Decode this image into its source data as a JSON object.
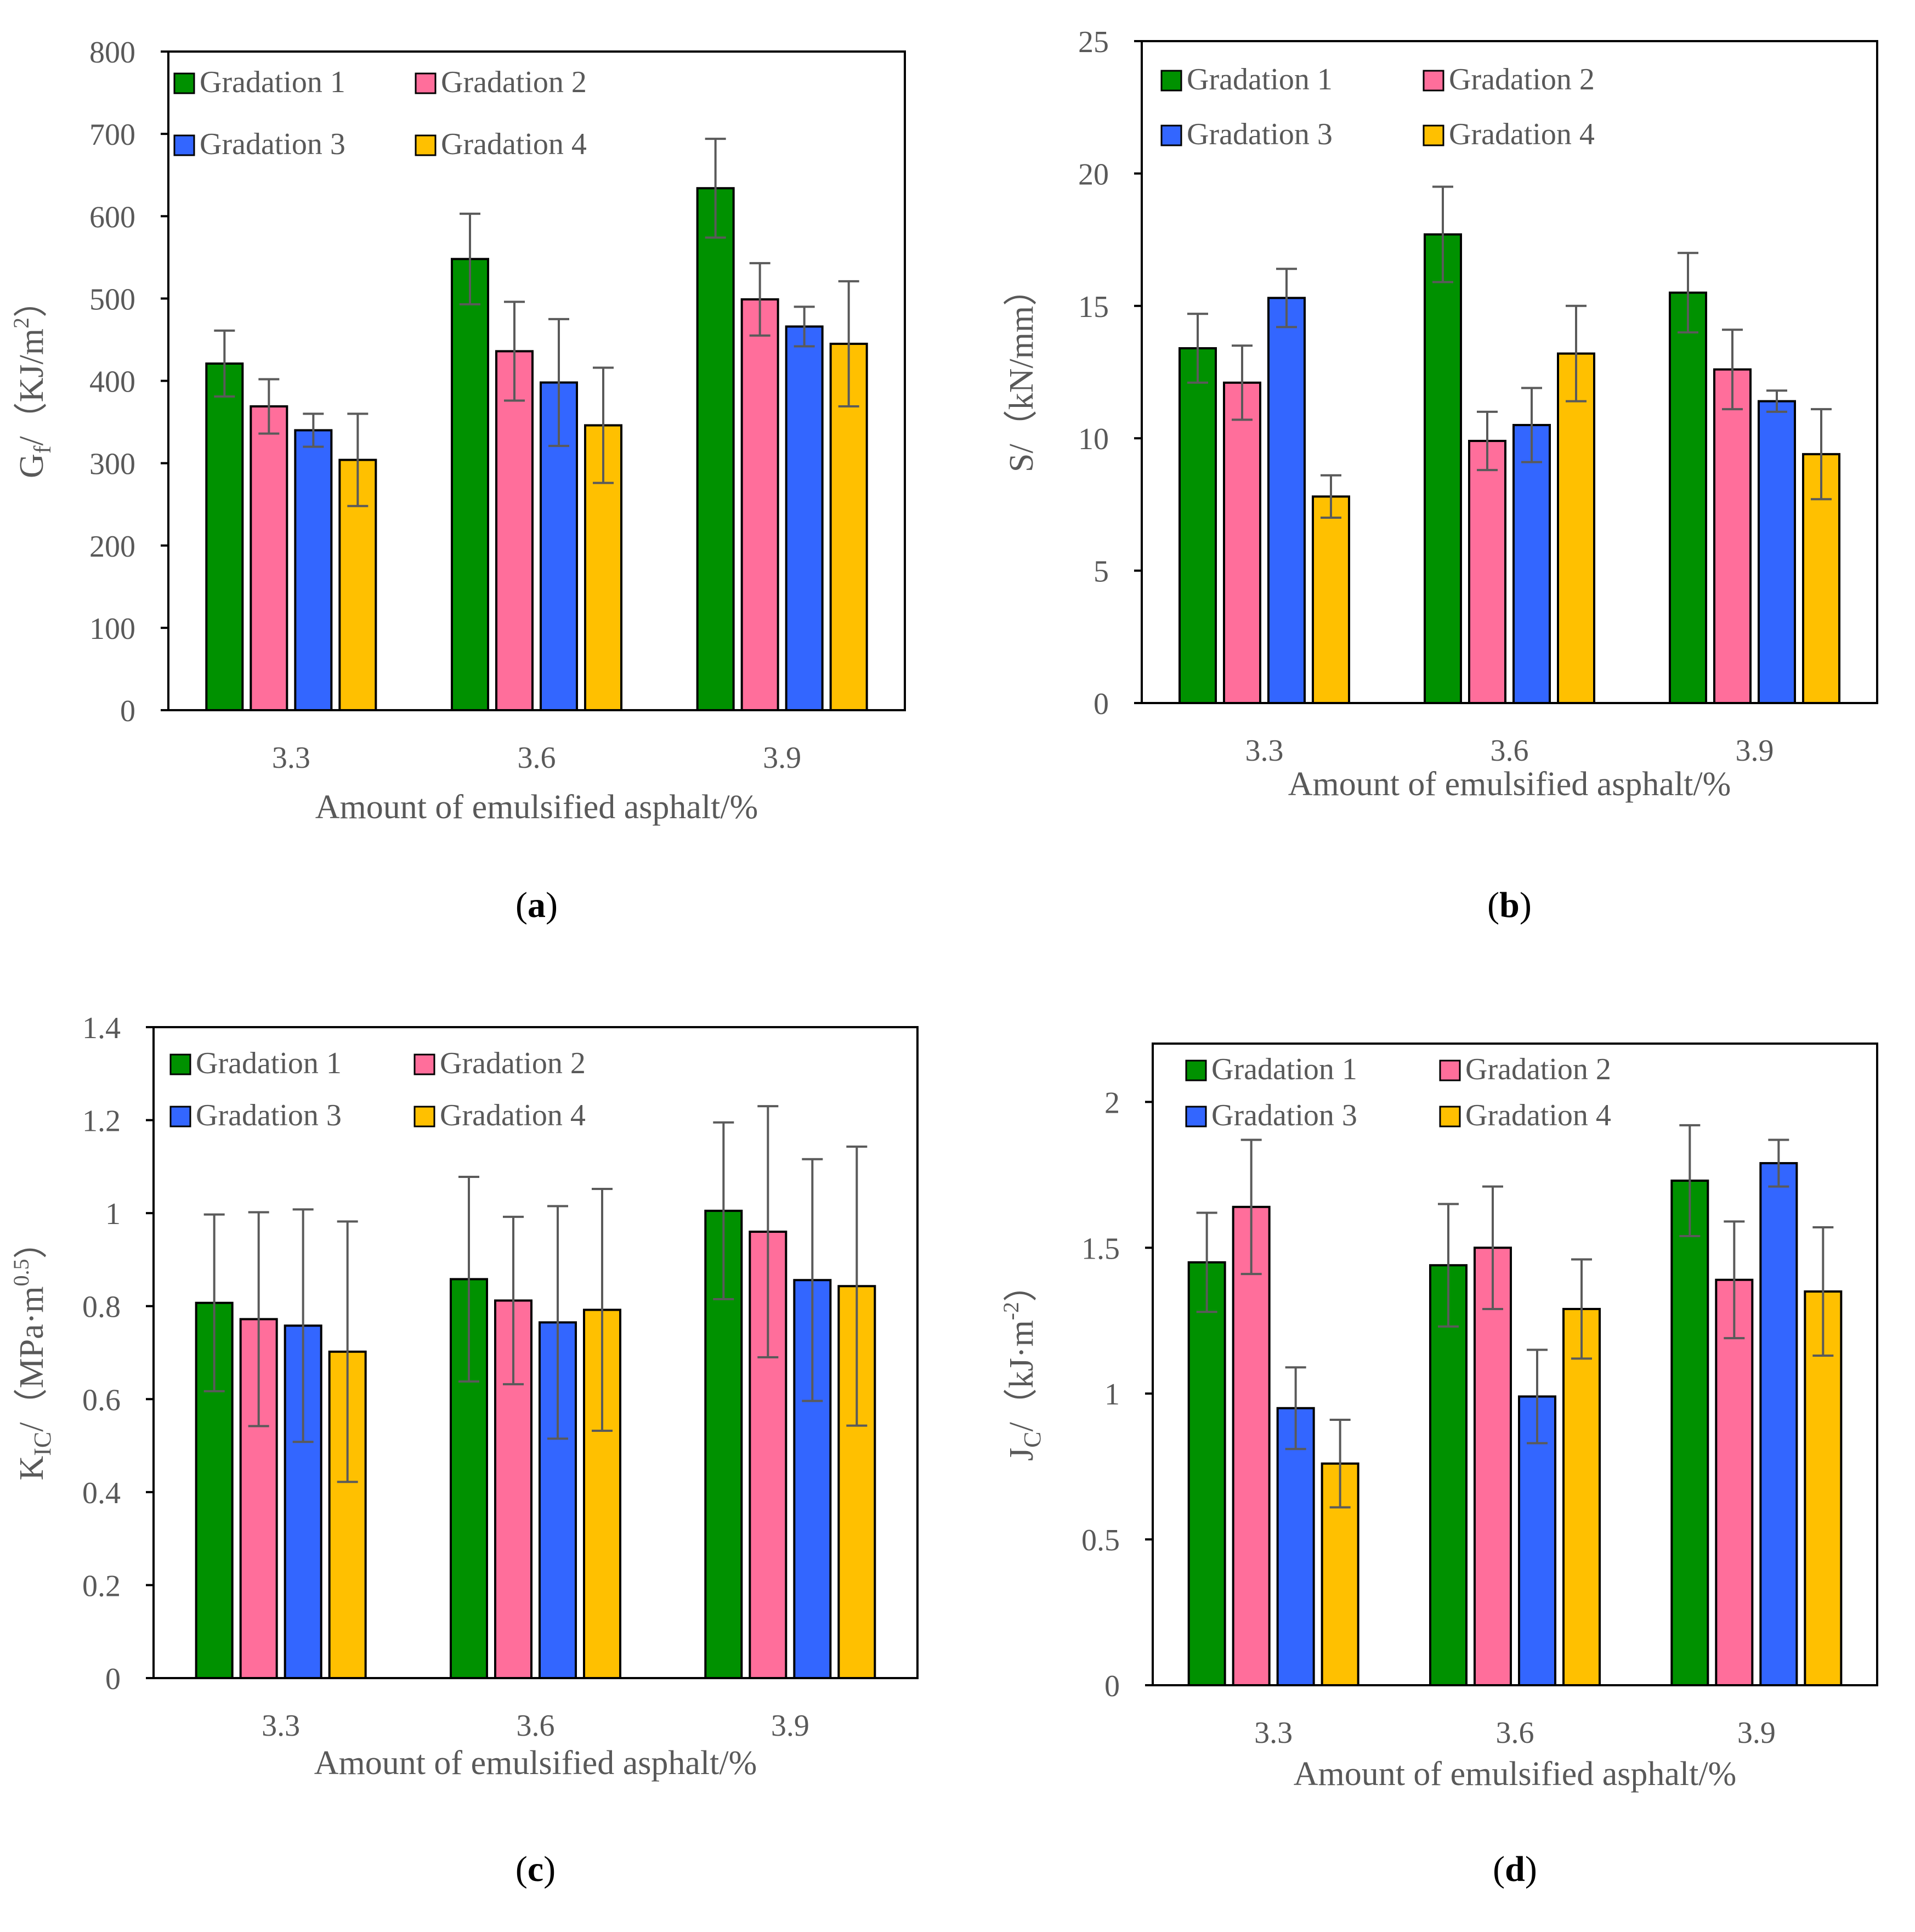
{
  "chart_data": [
    {
      "id": "a",
      "type": "bar",
      "panel_label": "a",
      "xlabel": "Amount of emulsified asphalt/%",
      "ylabel": {
        "main": "G",
        "sub": "f",
        "rest": "/（KJ/m",
        "sup": "2",
        "close": "）"
      },
      "categories": [
        "3.3",
        "3.6",
        "3.9"
      ],
      "ylim": [
        0,
        800
      ],
      "yticks": [
        0,
        100,
        200,
        300,
        400,
        500,
        600,
        700,
        800
      ],
      "ytick_labels": [
        "0",
        "100",
        "200",
        "300",
        "400",
        "500",
        "600",
        "700",
        "800"
      ],
      "legend": "top-left",
      "grid": false,
      "series": [
        {
          "name": "Gradation 1",
          "values": [
            421,
            548,
            634
          ],
          "errors": [
            40,
            55,
            60
          ]
        },
        {
          "name": "Gradation 2",
          "values": [
            369,
            436,
            499
          ],
          "errors": [
            33,
            60,
            44
          ]
        },
        {
          "name": "Gradation 3",
          "values": [
            340,
            398,
            466
          ],
          "errors": [
            20,
            77,
            24
          ]
        },
        {
          "name": "Gradation 4",
          "values": [
            304,
            346,
            445
          ],
          "errors": [
            56,
            70,
            76
          ]
        }
      ]
    },
    {
      "id": "b",
      "type": "bar",
      "panel_label": "b",
      "xlabel": "Amount of emulsified asphalt/%",
      "ylabel": {
        "main": "S/（kN/mm）"
      },
      "categories": [
        "3.3",
        "3.6",
        "3.9"
      ],
      "ylim": [
        0,
        25
      ],
      "yticks": [
        0,
        5,
        10,
        15,
        20,
        25
      ],
      "ytick_labels": [
        "0",
        "5",
        "10",
        "15",
        "20",
        "25"
      ],
      "legend": "top-left",
      "grid": false,
      "series": [
        {
          "name": "Gradation 1",
          "values": [
            13.4,
            17.7,
            15.5
          ],
          "errors": [
            1.3,
            1.8,
            1.5
          ]
        },
        {
          "name": "Gradation 2",
          "values": [
            12.1,
            9.9,
            12.6
          ],
          "errors": [
            1.4,
            1.1,
            1.5
          ]
        },
        {
          "name": "Gradation 3",
          "values": [
            15.3,
            10.5,
            11.4
          ],
          "errors": [
            1.1,
            1.4,
            0.4
          ]
        },
        {
          "name": "Gradation 4",
          "values": [
            7.8,
            13.2,
            9.4
          ],
          "errors": [
            0.8,
            1.8,
            1.7
          ]
        }
      ]
    },
    {
      "id": "c",
      "type": "bar",
      "panel_label": "c",
      "xlabel": "Amount of emulsified asphalt/%",
      "ylabel": {
        "main": "K",
        "sub": "IC",
        "rest": "/（MPa·m",
        "sup": "0.5",
        "close": "）"
      },
      "categories": [
        "3.3",
        "3.6",
        "3.9"
      ],
      "ylim": [
        0,
        1.4
      ],
      "yticks": [
        0,
        0.2,
        0.4,
        0.6,
        0.8,
        1.0,
        1.2,
        1.4
      ],
      "ytick_labels": [
        "0",
        "0.2",
        "0.4",
        "0.6",
        "0.8",
        "1",
        "1.2",
        "1.4"
      ],
      "legend": "top-left",
      "grid": false,
      "series": [
        {
          "name": "Gradation 1",
          "values": [
            0.807,
            0.858,
            1.005
          ],
          "errors": [
            0.19,
            0.22,
            0.19
          ]
        },
        {
          "name": "Gradation 2",
          "values": [
            0.772,
            0.812,
            0.96
          ],
          "errors": [
            0.23,
            0.18,
            0.27
          ]
        },
        {
          "name": "Gradation 3",
          "values": [
            0.758,
            0.765,
            0.856
          ],
          "errors": [
            0.25,
            0.25,
            0.26
          ]
        },
        {
          "name": "Gradation 4",
          "values": [
            0.702,
            0.792,
            0.843
          ],
          "errors": [
            0.28,
            0.26,
            0.3
          ]
        }
      ]
    },
    {
      "id": "d",
      "type": "bar",
      "panel_label": "d",
      "xlabel": "Amount of emulsified asphalt/%",
      "ylabel": {
        "main": "J",
        "sub": "C",
        "rest": "/（kJ·m",
        "sup": "-2",
        "close": "）"
      },
      "categories": [
        "3.3",
        "3.6",
        "3.9"
      ],
      "ylim": [
        0,
        2.2
      ],
      "yticks": [
        0,
        0.5,
        1.0,
        1.5,
        2.0
      ],
      "ytick_labels": [
        "0",
        "0.5",
        "1",
        "1.5",
        "2"
      ],
      "legend": "top-left",
      "grid": false,
      "series": [
        {
          "name": "Gradation 1",
          "values": [
            1.45,
            1.44,
            1.73
          ],
          "errors": [
            0.17,
            0.21,
            0.19
          ]
        },
        {
          "name": "Gradation 2",
          "values": [
            1.64,
            1.5,
            1.39
          ],
          "errors": [
            0.23,
            0.21,
            0.2
          ]
        },
        {
          "name": "Gradation 3",
          "values": [
            0.95,
            0.99,
            1.79
          ],
          "errors": [
            0.14,
            0.16,
            0.08
          ]
        },
        {
          "name": "Gradation 4",
          "values": [
            0.76,
            1.29,
            1.35
          ],
          "errors": [
            0.15,
            0.17,
            0.22
          ]
        }
      ]
    }
  ],
  "colors": {
    "Gradation 1": "#009100",
    "Gradation 2": "#ff6e9b",
    "Gradation 3": "#3366ff",
    "Gradation 4": "#ffc000",
    "error_bar": "#5a5a5a",
    "axis": "#000000",
    "text": "#595959"
  }
}
